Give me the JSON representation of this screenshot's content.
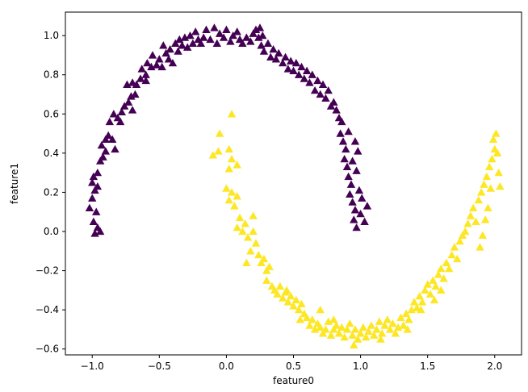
{
  "chart_data": {
    "type": "scatter",
    "title": "",
    "xlabel": "feature0",
    "ylabel": "feature1",
    "xlim": [
      -1.2,
      2.2
    ],
    "ylim": [
      -0.63,
      1.12
    ],
    "xticks": [
      -1.0,
      -0.5,
      0.0,
      0.5,
      1.0,
      1.5,
      2.0
    ],
    "yticks": [
      -0.6,
      -0.4,
      -0.2,
      0.0,
      0.2,
      0.4,
      0.6,
      0.8,
      1.0
    ],
    "xtick_labels": [
      "−1.0",
      "−0.5",
      "0.0",
      "0.5",
      "1.0",
      "1.5",
      "2.0"
    ],
    "ytick_labels": [
      "−0.6",
      "−0.4",
      "−0.2",
      "0.0",
      "0.2",
      "0.4",
      "0.6",
      "0.8",
      "1.0"
    ],
    "grid": false,
    "marker": "triangle",
    "series": [
      {
        "color": "#440154",
        "points": [
          [
            -1.02,
            0.12
          ],
          [
            -0.99,
            0.05
          ],
          [
            -0.98,
            -0.01
          ],
          [
            -0.96,
            0.02
          ],
          [
            -0.94,
            0.0
          ],
          [
            -0.97,
            0.1
          ],
          [
            -1.0,
            0.17
          ],
          [
            -0.98,
            0.21
          ],
          [
            -1.0,
            0.25
          ],
          [
            -0.96,
            0.23
          ],
          [
            -0.99,
            0.28
          ],
          [
            -0.96,
            0.3
          ],
          [
            -0.94,
            0.36
          ],
          [
            -0.92,
            0.38
          ],
          [
            -0.93,
            0.44
          ],
          [
            -0.9,
            0.41
          ],
          [
            -0.9,
            0.47
          ],
          [
            -0.88,
            0.49
          ],
          [
            -0.85,
            0.47
          ],
          [
            -0.83,
            0.42
          ],
          [
            -0.87,
            0.56
          ],
          [
            -0.84,
            0.6
          ],
          [
            -0.81,
            0.58
          ],
          [
            -0.79,
            0.56
          ],
          [
            -0.78,
            0.61
          ],
          [
            -0.76,
            0.64
          ],
          [
            -0.73,
            0.66
          ],
          [
            -0.7,
            0.62
          ],
          [
            -0.71,
            0.69
          ],
          [
            -0.68,
            0.7
          ],
          [
            -0.74,
            0.75
          ],
          [
            -0.7,
            0.76
          ],
          [
            -0.67,
            0.75
          ],
          [
            -0.64,
            0.78
          ],
          [
            -0.63,
            0.83
          ],
          [
            -0.6,
            0.8
          ],
          [
            -0.59,
            0.86
          ],
          [
            -0.56,
            0.84
          ],
          [
            -0.6,
            0.77
          ],
          [
            -0.55,
            0.9
          ],
          [
            -0.52,
            0.85
          ],
          [
            -0.5,
            0.88
          ],
          [
            -0.48,
            0.84
          ],
          [
            -0.47,
            0.95
          ],
          [
            -0.45,
            0.91
          ],
          [
            -0.43,
            0.88
          ],
          [
            -0.42,
            0.93
          ],
          [
            -0.4,
            0.86
          ],
          [
            -0.38,
            0.96
          ],
          [
            -0.36,
            0.92
          ],
          [
            -0.35,
            0.98
          ],
          [
            -0.33,
            0.95
          ],
          [
            -0.31,
            0.99
          ],
          [
            -0.29,
            0.94
          ],
          [
            -0.27,
            1.0
          ],
          [
            -0.25,
            0.96
          ],
          [
            -0.23,
            1.02
          ],
          [
            -0.21,
            0.98
          ],
          [
            -0.19,
            0.96
          ],
          [
            -0.17,
            0.99
          ],
          [
            -0.15,
            1.03
          ],
          [
            -0.12,
            0.98
          ],
          [
            -0.09,
            1.04
          ],
          [
            -0.07,
            0.96
          ],
          [
            -0.05,
            1.01
          ],
          [
            -0.02,
            0.99
          ],
          [
            0.0,
            1.03
          ],
          [
            0.03,
            0.97
          ],
          [
            0.05,
            1.0
          ],
          [
            0.08,
            1.02
          ],
          [
            0.1,
            0.98
          ],
          [
            0.12,
            0.96
          ],
          [
            0.15,
            0.99
          ],
          [
            0.18,
            0.97
          ],
          [
            0.2,
            1.01
          ],
          [
            0.22,
            1.03
          ],
          [
            0.24,
            0.99
          ],
          [
            0.25,
            1.04
          ],
          [
            0.27,
            1.0
          ],
          [
            0.26,
            0.95
          ],
          [
            0.28,
            0.92
          ],
          [
            0.31,
            0.96
          ],
          [
            0.33,
            0.89
          ],
          [
            0.35,
            0.93
          ],
          [
            0.37,
            0.88
          ],
          [
            0.39,
            0.91
          ],
          [
            0.42,
            0.86
          ],
          [
            0.44,
            0.89
          ],
          [
            0.46,
            0.83
          ],
          [
            0.48,
            0.87
          ],
          [
            0.5,
            0.82
          ],
          [
            0.52,
            0.86
          ],
          [
            0.54,
            0.8
          ],
          [
            0.56,
            0.84
          ],
          [
            0.58,
            0.78
          ],
          [
            0.6,
            0.82
          ],
          [
            0.62,
            0.76
          ],
          [
            0.64,
            0.8
          ],
          [
            0.66,
            0.72
          ],
          [
            0.68,
            0.77
          ],
          [
            0.7,
            0.7
          ],
          [
            0.72,
            0.75
          ],
          [
            0.74,
            0.68
          ],
          [
            0.76,
            0.72
          ],
          [
            0.78,
            0.64
          ],
          [
            0.8,
            0.66
          ],
          [
            0.82,
            0.62
          ],
          [
            0.84,
            0.58
          ],
          [
            0.86,
            0.56
          ],
          [
            0.85,
            0.5
          ],
          [
            0.87,
            0.46
          ],
          [
            0.89,
            0.42
          ],
          [
            0.88,
            0.37
          ],
          [
            0.9,
            0.33
          ],
          [
            0.91,
            0.28
          ],
          [
            0.93,
            0.24
          ],
          [
            0.92,
            0.19
          ],
          [
            0.94,
            0.15
          ],
          [
            0.96,
            0.11
          ],
          [
            0.95,
            0.06
          ],
          [
            0.97,
            0.02
          ],
          [
            0.99,
            0.21
          ],
          [
            1.01,
            0.17
          ],
          [
            1.0,
            0.09
          ],
          [
            1.03,
            0.05
          ],
          [
            1.05,
            0.13
          ],
          [
            0.98,
            0.41
          ],
          [
            0.96,
            0.46
          ],
          [
            0.91,
            0.51
          ],
          [
            0.94,
            0.36
          ],
          [
            0.97,
            0.31
          ]
        ]
      },
      {
        "color": "#fde725",
        "points": [
          [
            0.04,
            0.6
          ],
          [
            -0.05,
            0.5
          ],
          [
            -0.1,
            0.39
          ],
          [
            -0.06,
            0.41
          ],
          [
            0.02,
            0.42
          ],
          [
            0.04,
            0.37
          ],
          [
            0.08,
            0.34
          ],
          [
            0.02,
            0.32
          ],
          [
            0.0,
            0.22
          ],
          [
            0.04,
            0.2
          ],
          [
            0.08,
            0.18
          ],
          [
            0.06,
            0.13
          ],
          [
            0.02,
            0.16
          ],
          [
            0.1,
            0.07
          ],
          [
            0.08,
            0.02
          ],
          [
            0.12,
            0.0
          ],
          [
            0.14,
            0.04
          ],
          [
            0.16,
            -0.03
          ],
          [
            0.2,
            0.0
          ],
          [
            0.22,
            -0.06
          ],
          [
            0.24,
            -0.12
          ],
          [
            0.18,
            -0.1
          ],
          [
            0.26,
            -0.16
          ],
          [
            0.28,
            -0.14
          ],
          [
            0.3,
            -0.2
          ],
          [
            0.32,
            -0.18
          ],
          [
            0.3,
            -0.25
          ],
          [
            0.34,
            -0.28
          ],
          [
            0.36,
            -0.3
          ],
          [
            0.38,
            -0.32
          ],
          [
            0.4,
            -0.28
          ],
          [
            0.42,
            -0.34
          ],
          [
            0.44,
            -0.31
          ],
          [
            0.46,
            -0.36
          ],
          [
            0.48,
            -0.33
          ],
          [
            0.5,
            -0.38
          ],
          [
            0.52,
            -0.35
          ],
          [
            0.54,
            -0.4
          ],
          [
            0.56,
            -0.37
          ],
          [
            0.58,
            -0.42
          ],
          [
            0.6,
            -0.44
          ],
          [
            0.62,
            -0.48
          ],
          [
            0.64,
            -0.45
          ],
          [
            0.66,
            -0.5
          ],
          [
            0.68,
            -0.47
          ],
          [
            0.7,
            -0.49
          ],
          [
            0.72,
            -0.52
          ],
          [
            0.74,
            -0.5
          ],
          [
            0.76,
            -0.46
          ],
          [
            0.78,
            -0.53
          ],
          [
            0.8,
            -0.5
          ],
          [
            0.82,
            -0.48
          ],
          [
            0.84,
            -0.52
          ],
          [
            0.86,
            -0.49
          ],
          [
            0.88,
            -0.54
          ],
          [
            0.9,
            -0.5
          ],
          [
            0.92,
            -0.47
          ],
          [
            0.94,
            -0.53
          ],
          [
            0.96,
            -0.5
          ],
          [
            0.98,
            -0.55
          ],
          [
            1.0,
            -0.52
          ],
          [
            1.02,
            -0.49
          ],
          [
            1.04,
            -0.54
          ],
          [
            1.06,
            -0.51
          ],
          [
            1.08,
            -0.48
          ],
          [
            1.1,
            -0.53
          ],
          [
            1.12,
            -0.5
          ],
          [
            1.14,
            -0.46
          ],
          [
            1.16,
            -0.52
          ],
          [
            1.18,
            -0.48
          ],
          [
            1.2,
            -0.45
          ],
          [
            1.22,
            -0.5
          ],
          [
            1.24,
            -0.47
          ],
          [
            1.26,
            -0.52
          ],
          [
            1.28,
            -0.49
          ],
          [
            1.3,
            -0.44
          ],
          [
            1.32,
            -0.48
          ],
          [
            1.34,
            -0.42
          ],
          [
            1.36,
            -0.45
          ],
          [
            1.38,
            -0.4
          ],
          [
            1.4,
            -0.36
          ],
          [
            1.42,
            -0.39
          ],
          [
            1.44,
            -0.33
          ],
          [
            1.46,
            -0.36
          ],
          [
            1.48,
            -0.3
          ],
          [
            1.5,
            -0.27
          ],
          [
            1.52,
            -0.32
          ],
          [
            1.54,
            -0.25
          ],
          [
            1.56,
            -0.28
          ],
          [
            1.58,
            -0.22
          ],
          [
            1.6,
            -0.19
          ],
          [
            1.62,
            -0.24
          ],
          [
            1.64,
            -0.16
          ],
          [
            1.66,
            -0.19
          ],
          [
            1.68,
            -0.12
          ],
          [
            1.7,
            -0.08
          ],
          [
            1.72,
            -0.14
          ],
          [
            1.74,
            -0.05
          ],
          [
            1.76,
            -0.02
          ],
          [
            1.78,
            0.0
          ],
          [
            1.8,
            0.04
          ],
          [
            1.82,
            0.08
          ],
          [
            1.84,
            0.12
          ],
          [
            1.86,
            0.05
          ],
          [
            1.88,
            0.16
          ],
          [
            1.9,
            0.2
          ],
          [
            1.92,
            0.24
          ],
          [
            1.94,
            0.28
          ],
          [
            1.96,
            0.33
          ],
          [
            1.98,
            0.37
          ],
          [
            2.0,
            0.42
          ],
          [
            1.99,
            0.47
          ],
          [
            2.01,
            0.5
          ],
          [
            2.02,
            0.4
          ],
          [
            2.03,
            0.3
          ],
          [
            2.04,
            0.23
          ],
          [
            1.97,
            0.22
          ],
          [
            1.95,
            0.12
          ],
          [
            1.93,
            0.06
          ],
          [
            1.91,
            -0.02
          ],
          [
            1.89,
            -0.08
          ],
          [
            1.6,
            -0.3
          ],
          [
            1.55,
            -0.35
          ],
          [
            1.45,
            -0.4
          ],
          [
            1.35,
            -0.5
          ],
          [
            1.15,
            -0.55
          ],
          [
            0.95,
            -0.58
          ],
          [
            0.8,
            -0.45
          ],
          [
            0.7,
            -0.4
          ],
          [
            0.55,
            -0.45
          ],
          [
            0.45,
            -0.3
          ],
          [
            0.2,
            0.08
          ],
          [
            0.15,
            -0.16
          ]
        ]
      }
    ]
  }
}
